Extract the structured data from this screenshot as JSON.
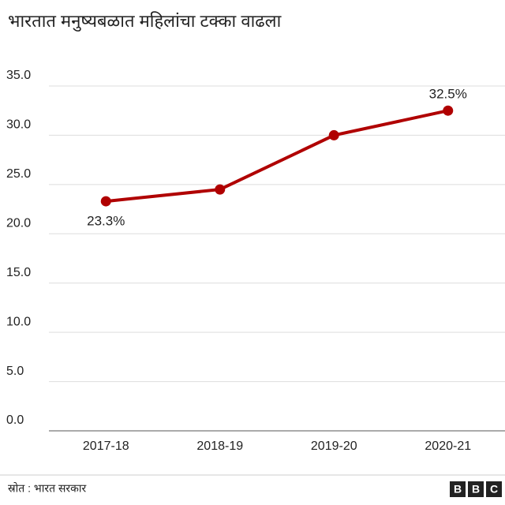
{
  "chart_data": {
    "type": "line",
    "title": "भारतात मनुष्यबळात महिलांचा टक्का वाढला",
    "categories": [
      "2017-18",
      "2018-19",
      "2019-20",
      "2020-21"
    ],
    "series": [
      {
        "color": "#b00000",
        "values": [
          23.3,
          24.5,
          30.0,
          32.5
        ],
        "value_labels": [
          "23.3%",
          null,
          null,
          "32.5%"
        ]
      }
    ],
    "ylim": [
      0,
      35
    ],
    "yticks": [
      {
        "value": 0,
        "label": "0.0"
      },
      {
        "value": 5,
        "label": "5.0"
      },
      {
        "value": 10,
        "label": "10.0"
      },
      {
        "value": 15,
        "label": "15.0"
      },
      {
        "value": 20,
        "label": "20.0"
      },
      {
        "value": 25,
        "label": "25.0"
      },
      {
        "value": 30,
        "label": "30.0"
      },
      {
        "value": 35,
        "label": "35.0"
      }
    ],
    "grid": true,
    "source": "स्रोत : भारत सरकार",
    "logo": [
      "B",
      "B",
      "C"
    ]
  }
}
